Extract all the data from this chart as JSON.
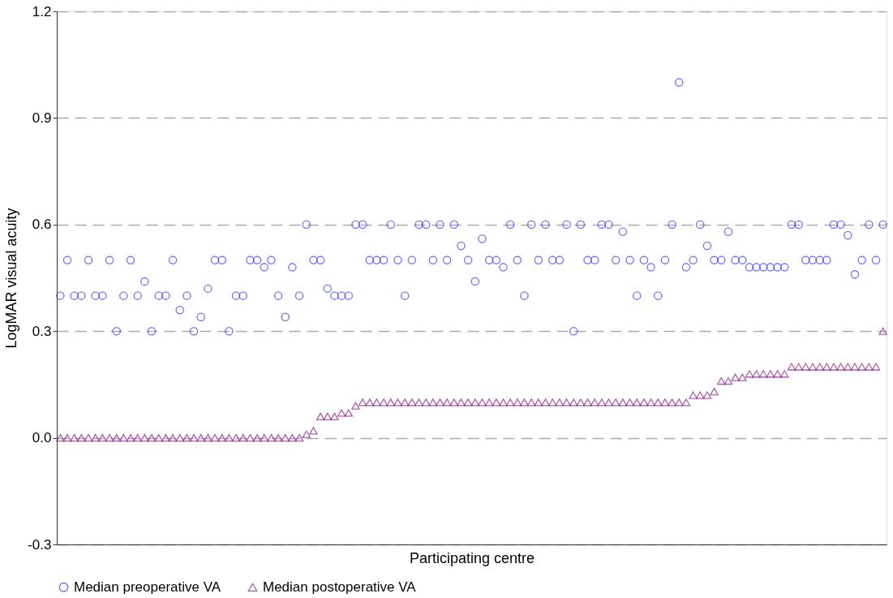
{
  "chart_data": {
    "type": "scatter",
    "ylabel": "LogMAR visual acuity",
    "xlabel": "Participating centre",
    "categories": [
      null,
      null,
      null,
      null,
      null,
      null,
      null,
      null,
      null,
      null,
      null,
      null,
      null,
      null,
      null,
      null,
      null,
      null,
      null,
      null,
      null,
      null,
      null,
      null,
      null,
      null,
      null,
      null,
      null,
      null,
      null,
      null,
      null,
      null,
      null,
      null,
      null,
      null,
      null,
      null,
      null,
      null,
      null,
      null,
      null,
      null,
      null,
      null,
      null,
      null,
      null,
      null,
      null,
      null,
      null,
      null,
      null,
      null,
      null,
      null,
      null,
      null,
      null,
      null,
      null,
      null,
      null,
      null,
      null,
      null,
      null,
      null,
      null,
      null,
      null,
      null,
      null,
      null,
      null,
      null,
      null,
      null,
      null,
      null,
      null,
      null,
      null,
      null,
      null,
      null,
      null,
      null,
      null,
      null,
      null,
      null,
      null,
      null,
      null,
      null,
      null,
      null,
      null,
      null,
      null,
      null,
      null,
      null,
      null,
      null,
      null,
      null,
      null,
      null,
      null,
      null,
      null,
      null
    ],
    "ylim": [
      -0.3,
      1.2
    ],
    "yticks": [
      {
        "value": -0.3,
        "label": "-0.3"
      },
      {
        "value": 0,
        "label": "0.0"
      },
      0.3,
      0.6,
      0.9,
      1.2
    ],
    "grid": "y",
    "legend": "bottom",
    "series": [
      {
        "name": "Median preoperative VA",
        "color": "#3333ff",
        "marker": "circle",
        "values": [
          0.4,
          0.5,
          0.4,
          0.4,
          0.5,
          0.4,
          0.4,
          0.5,
          0.3,
          0.4,
          0.5,
          0.4,
          0.44,
          0.3,
          0.4,
          0.4,
          0.5,
          0.36,
          0.4,
          0.3,
          0.34,
          0.42,
          0.5,
          0.5,
          0.3,
          0.4,
          0.4,
          0.5,
          0.5,
          0.48,
          0.5,
          0.4,
          0.34,
          0.48,
          0.4,
          0.6,
          0.5,
          0.5,
          0.42,
          0.4,
          0.4,
          0.4,
          0.6,
          0.6,
          0.5,
          0.5,
          0.5,
          0.6,
          0.5,
          0.4,
          0.5,
          0.6,
          0.6,
          0.5,
          0.6,
          0.5,
          0.6,
          0.54,
          0.5,
          0.44,
          0.56,
          0.5,
          0.5,
          0.48,
          0.6,
          0.5,
          0.4,
          0.6,
          0.5,
          0.6,
          0.5,
          0.5,
          0.6,
          0.3,
          0.6,
          0.5,
          0.5,
          0.6,
          0.6,
          0.5,
          0.58,
          0.5,
          0.4,
          0.5,
          0.48,
          0.4,
          0.5,
          0.6,
          1.0,
          0.48,
          0.5,
          0.6,
          0.54,
          0.5,
          0.5,
          0.58,
          0.5,
          0.5,
          0.48,
          0.48,
          0.48,
          0.48,
          0.48,
          0.48,
          0.6,
          0.6,
          0.5,
          0.5,
          0.5,
          0.5,
          0.6,
          0.6,
          0.57,
          0.46,
          0.5,
          0.6,
          0.5,
          0.6
        ]
      },
      {
        "name": "Median postoperative VA",
        "color": "#8b1a89",
        "marker": "triangle",
        "values": [
          0,
          0,
          0,
          0,
          0,
          0,
          0,
          0,
          0,
          0,
          0,
          0,
          0,
          0,
          0,
          0,
          0,
          0,
          0,
          0,
          0,
          0,
          0,
          0,
          0,
          0,
          0,
          0,
          0,
          0,
          0,
          0,
          0,
          0,
          0,
          0.01,
          0.02,
          0.06,
          0.06,
          0.06,
          0.07,
          0.07,
          0.09,
          0.1,
          0.1,
          0.1,
          0.1,
          0.1,
          0.1,
          0.1,
          0.1,
          0.1,
          0.1,
          0.1,
          0.1,
          0.1,
          0.1,
          0.1,
          0.1,
          0.1,
          0.1,
          0.1,
          0.1,
          0.1,
          0.1,
          0.1,
          0.1,
          0.1,
          0.1,
          0.1,
          0.1,
          0.1,
          0.1,
          0.1,
          0.1,
          0.1,
          0.1,
          0.1,
          0.1,
          0.1,
          0.1,
          0.1,
          0.1,
          0.1,
          0.1,
          0.1,
          0.1,
          0.1,
          0.1,
          0.1,
          0.12,
          0.12,
          0.12,
          0.13,
          0.16,
          0.16,
          0.17,
          0.17,
          0.18,
          0.18,
          0.18,
          0.18,
          0.18,
          0.18,
          0.2,
          0.2,
          0.2,
          0.2,
          0.2,
          0.2,
          0.2,
          0.2,
          0.2,
          0.2,
          0.2,
          0.2,
          0.2,
          0.3
        ]
      }
    ]
  }
}
